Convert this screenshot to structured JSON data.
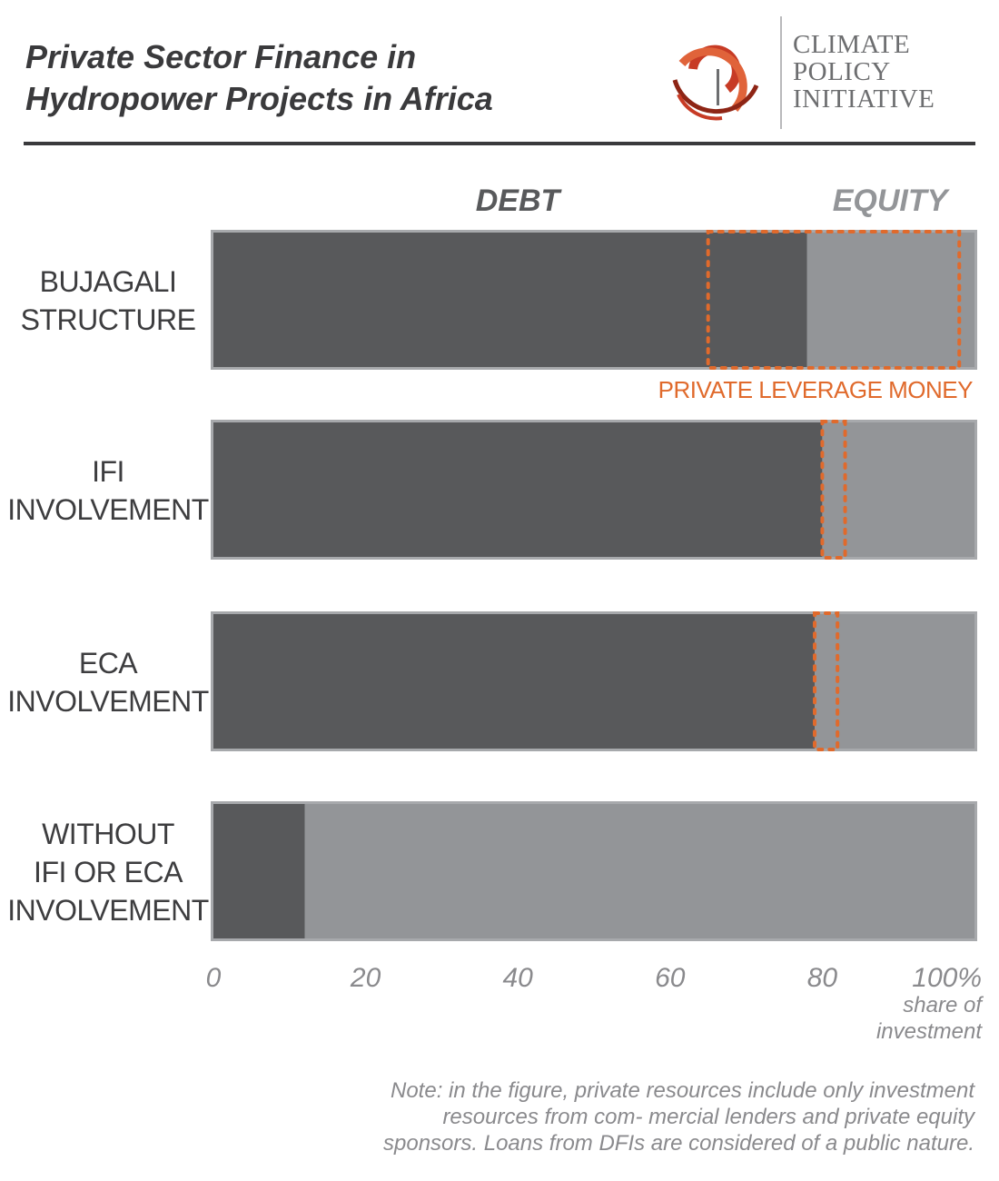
{
  "header": {
    "title_line1": "Private Sector Finance in",
    "title_line2": "Hydropower Projects in Africa"
  },
  "logo": {
    "line1": "CLIMATE",
    "line2": "POLICY",
    "line3": "INITIATIVE",
    "icon": "cpi-circle-icon",
    "colors": [
      "#c73b25",
      "#e0633a",
      "#8e2515"
    ]
  },
  "colors": {
    "debt": "#58595b",
    "equity": "#939598",
    "bar_border": "#a7a9ac",
    "leverage": "#e06a2c",
    "title": "#3a3a3c",
    "axis_text": "#8a8a8d"
  },
  "chart_data": {
    "type": "bar",
    "orientation": "horizontal",
    "stacked": true,
    "categories": [
      [
        "BUJAGALI",
        "STRUCTURE"
      ],
      [
        "IFI",
        "INVOLVEMENT"
      ],
      [
        "ECA",
        "INVOLVEMENT"
      ],
      [
        "WITHOUT",
        "IFI OR ECA",
        "INVOLVEMENT"
      ]
    ],
    "series": [
      {
        "name": "DEBT",
        "values": [
          78,
          80,
          79,
          12
        ]
      },
      {
        "name": "EQUITY",
        "values": [
          22,
          20,
          21,
          88
        ]
      }
    ],
    "private_leverage": {
      "label": "PRIVATE LEVERAGE MONEY",
      "ranges": [
        [
          65,
          98
        ],
        [
          80,
          83
        ],
        [
          79,
          82
        ]
      ]
    },
    "x_ticks": [
      "0",
      "20",
      "40",
      "60",
      "80",
      "100%"
    ],
    "x_tick_values": [
      0,
      20,
      40,
      60,
      80,
      100
    ],
    "xlim": [
      0,
      100
    ],
    "xlabel": "share of investment",
    "xlabel_lines": [
      "share of",
      "investment"
    ],
    "legend_position": "top",
    "grid": false
  },
  "note": {
    "line1": "Note: in the figure, private resources include only investment",
    "line2": "resources from com- mercial lenders and private equity",
    "line3": "sponsors. Loans from DFIs are considered of a public nature."
  }
}
